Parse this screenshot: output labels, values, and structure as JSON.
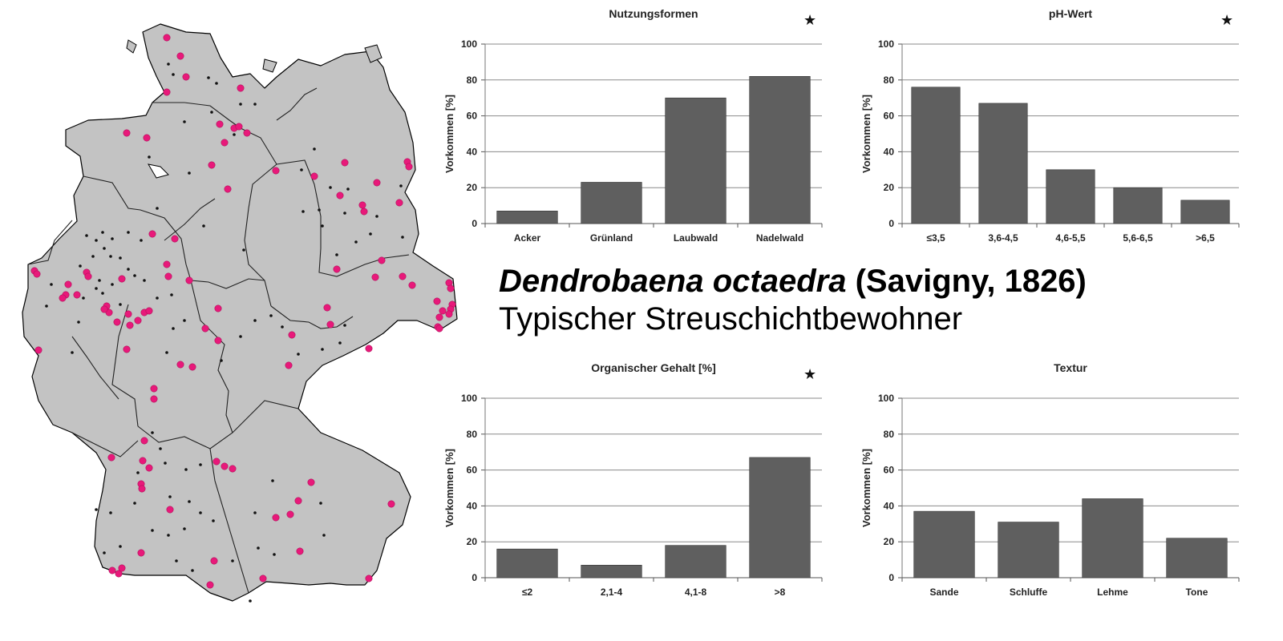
{
  "species": {
    "name": "Dendrobaena octaedra",
    "author": "(Savigny, 1826)",
    "description": "Typischer Streuschichtbewohner"
  },
  "colors": {
    "bar": "#5f5f5f",
    "map_fill": "#c3c3c3",
    "marker_pink": "#e8197a",
    "marker_black": "#111111"
  },
  "chart_data": [
    {
      "type": "bar",
      "title": "Nutzungsformen",
      "ylabel": "Vorkommen [%]",
      "xlabel": "",
      "categories": [
        "Acker",
        "Grünland",
        "Laubwald",
        "Nadelwald"
      ],
      "values": [
        7,
        23,
        70,
        82
      ],
      "ylim": [
        0,
        100
      ],
      "yticks": [
        0,
        20,
        40,
        60,
        80,
        100
      ],
      "grid": true,
      "star": "★"
    },
    {
      "type": "bar",
      "title": "pH-Wert",
      "ylabel": "Vorkommen [%]",
      "xlabel": "",
      "categories": [
        "≤3,5",
        "3,6-4,5",
        "4,6-5,5",
        "5,6-6,5",
        ">6,5"
      ],
      "values": [
        76,
        67,
        30,
        20,
        13
      ],
      "ylim": [
        0,
        100
      ],
      "yticks": [
        0,
        20,
        40,
        60,
        80,
        100
      ],
      "grid": true,
      "star": "★"
    },
    {
      "type": "bar",
      "title": "Organischer Gehalt [%]",
      "ylabel": "Vorkommen [%]",
      "xlabel": "",
      "categories": [
        "≤2",
        "2,1-4",
        "4,1-8",
        ">8"
      ],
      "values": [
        16,
        7,
        18,
        67
      ],
      "ylim": [
        0,
        100
      ],
      "yticks": [
        0,
        20,
        40,
        60,
        80,
        100
      ],
      "grid": true,
      "star": "★"
    },
    {
      "type": "bar",
      "title": "Textur",
      "ylabel": "Vorkommen [%]",
      "xlabel": "",
      "categories": [
        "Sande",
        "Schluffe",
        "Lehme",
        "Tone"
      ],
      "values": [
        37,
        31,
        44,
        22
      ],
      "ylim": [
        0,
        100
      ],
      "yticks": [
        0,
        20,
        40,
        60,
        80,
        100
      ],
      "grid": true,
      "star": ""
    }
  ]
}
